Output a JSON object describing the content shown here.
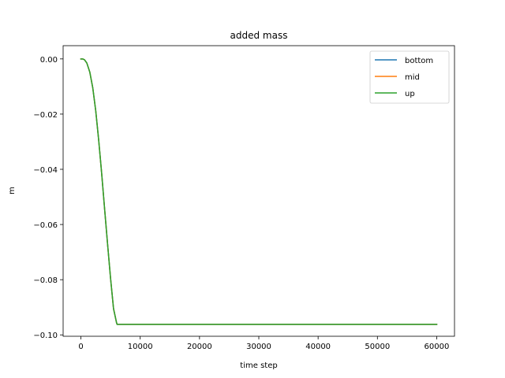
{
  "chart_data": {
    "type": "line",
    "title": "added mass",
    "xlabel": "time step",
    "ylabel": "m",
    "xlim": [
      -3000,
      63000
    ],
    "ylim": [
      -0.1005,
      0.0048
    ],
    "xticks": [
      0,
      10000,
      20000,
      30000,
      40000,
      50000,
      60000
    ],
    "xtick_labels": [
      "0",
      "10000",
      "20000",
      "30000",
      "40000",
      "50000",
      "60000"
    ],
    "yticks": [
      0.0,
      -0.02,
      -0.04,
      -0.06,
      -0.08,
      -0.1
    ],
    "ytick_labels": [
      "0.00",
      "−0.02",
      "−0.04",
      "−0.06",
      "−0.08",
      "−0.10"
    ],
    "grid": false,
    "legend_position": "top-right",
    "series": [
      {
        "name": "bottom",
        "color": "#1f77b4",
        "x": [
          0,
          300,
          600,
          1000,
          1500,
          2000,
          2500,
          3000,
          3500,
          4000,
          4500,
          5000,
          5500,
          6000,
          6100,
          10000,
          20000,
          30000,
          40000,
          50000,
          60000
        ],
        "y": [
          0.0,
          0.0,
          -0.0003,
          -0.0015,
          -0.0048,
          -0.0105,
          -0.0188,
          -0.0295,
          -0.0415,
          -0.0545,
          -0.0672,
          -0.0795,
          -0.0905,
          -0.0955,
          -0.0962,
          -0.0962,
          -0.0962,
          -0.0962,
          -0.0962,
          -0.0962,
          -0.0962
        ]
      },
      {
        "name": "mid",
        "color": "#ff7f0e",
        "x": [
          0,
          300,
          600,
          1000,
          1500,
          2000,
          2500,
          3000,
          3500,
          4000,
          4500,
          5000,
          5500,
          6000,
          6100,
          10000,
          20000,
          30000,
          40000,
          50000,
          60000
        ],
        "y": [
          0.0,
          0.0,
          -0.0003,
          -0.0015,
          -0.0048,
          -0.0105,
          -0.0188,
          -0.0295,
          -0.0415,
          -0.0545,
          -0.0672,
          -0.0795,
          -0.0905,
          -0.0955,
          -0.0962,
          -0.0962,
          -0.0962,
          -0.0962,
          -0.0962,
          -0.0962,
          -0.0962
        ]
      },
      {
        "name": "up",
        "color": "#2ca02c",
        "x": [
          0,
          300,
          600,
          1000,
          1500,
          2000,
          2500,
          3000,
          3500,
          4000,
          4500,
          5000,
          5500,
          6000,
          6100,
          10000,
          20000,
          30000,
          40000,
          50000,
          60000
        ],
        "y": [
          0.0,
          0.0,
          -0.0003,
          -0.0015,
          -0.0048,
          -0.0105,
          -0.0188,
          -0.0295,
          -0.0415,
          -0.0545,
          -0.0672,
          -0.0795,
          -0.0905,
          -0.0955,
          -0.0962,
          -0.0962,
          -0.0962,
          -0.0962,
          -0.0962,
          -0.0962,
          -0.0962
        ]
      }
    ]
  }
}
